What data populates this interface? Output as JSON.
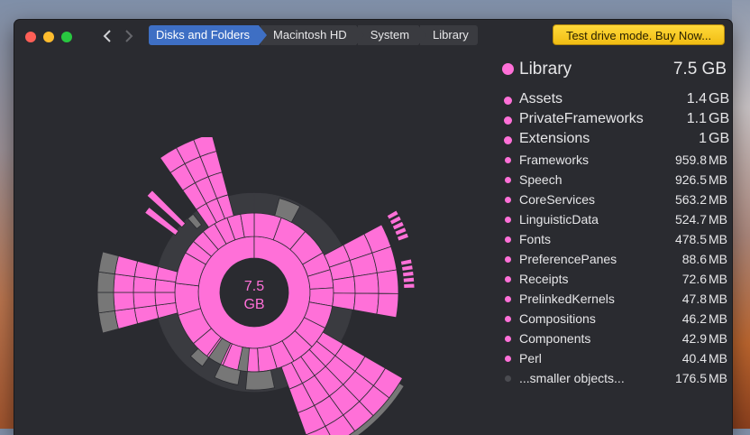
{
  "breadcrumbs": [
    "Disks and Folders",
    "Macintosh HD",
    "System",
    "Library"
  ],
  "buy_button": "Test drive mode. Buy Now...",
  "center": {
    "value": "7.5",
    "unit": "GB"
  },
  "header": {
    "name": "Library",
    "size": "7.5 GB"
  },
  "big_items": [
    {
      "name": "Assets",
      "size": "1.4",
      "unit": "GB"
    },
    {
      "name": "PrivateFrameworks",
      "size": "1.1",
      "unit": "GB"
    },
    {
      "name": "Extensions",
      "size": "1",
      "unit": "GB"
    }
  ],
  "items": [
    {
      "name": "Frameworks",
      "size": "959.8",
      "unit": "MB"
    },
    {
      "name": "Speech",
      "size": "926.5",
      "unit": "MB"
    },
    {
      "name": "CoreServices",
      "size": "563.2",
      "unit": "MB"
    },
    {
      "name": "LinguisticData",
      "size": "524.7",
      "unit": "MB"
    },
    {
      "name": "Fonts",
      "size": "478.5",
      "unit": "MB"
    },
    {
      "name": "PreferencePanes",
      "size": "88.6",
      "unit": "MB"
    },
    {
      "name": "Receipts",
      "size": "72.6",
      "unit": "MB"
    },
    {
      "name": "PrelinkedKernels",
      "size": "47.8",
      "unit": "MB"
    },
    {
      "name": "Compositions",
      "size": "46.2",
      "unit": "MB"
    },
    {
      "name": "Components",
      "size": "42.9",
      "unit": "MB"
    },
    {
      "name": "Perl",
      "size": "40.4",
      "unit": "MB"
    },
    {
      "name": "...smaller objects...",
      "size": "176.5",
      "unit": "MB"
    }
  ],
  "colors": {
    "pink": "#ff70d8",
    "gray": "#777777",
    "ring_bg": "#3a3b40"
  }
}
